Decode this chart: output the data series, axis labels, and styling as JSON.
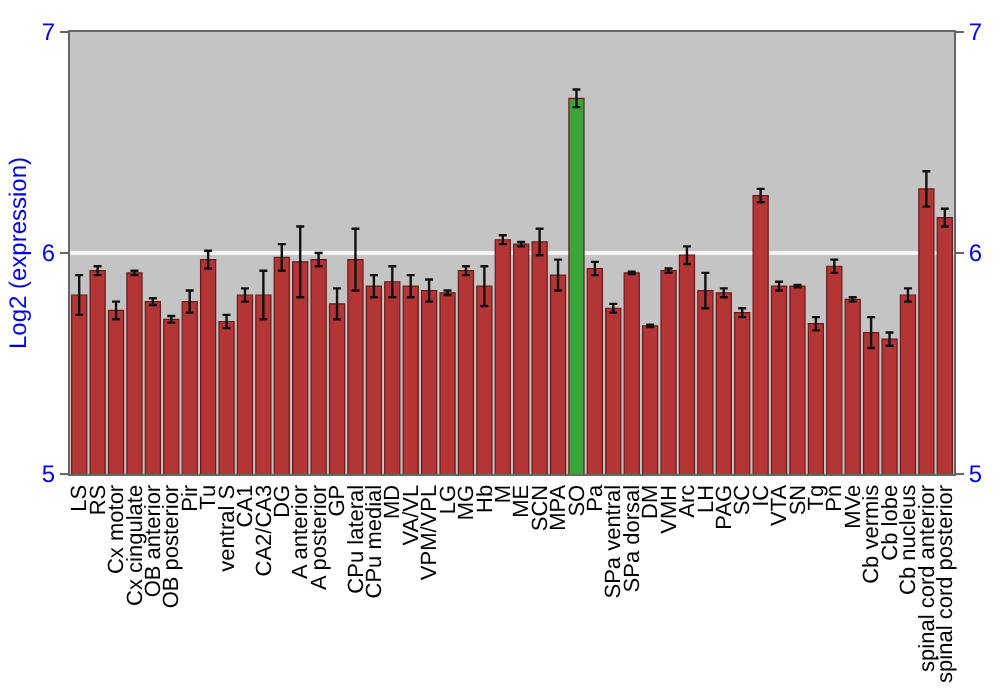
{
  "chart_data": {
    "type": "bar",
    "ylabel": "Log2 (expression)",
    "categories": [
      "LS",
      "RS",
      "Cx motor",
      "Cx cingulate",
      "OB anterior",
      "OB posterior",
      "Pir",
      "Tu",
      "ventral S",
      "CA1",
      "CA2/CA3",
      "DG",
      "A anterior",
      "A posterior",
      "GP",
      "CPu lateral",
      "CPu medial",
      "MD",
      "VA/VL",
      "VPM/VPL",
      "LG",
      "MG",
      "Hb",
      "M",
      "ME",
      "SCN",
      "MPA",
      "SO",
      "Pa",
      "SPa ventral",
      "SPa dorsal",
      "DM",
      "VMH",
      "Arc",
      "LH",
      "PAG",
      "SC",
      "IC",
      "VTA",
      "SN",
      "Tg",
      "Pn",
      "MVe",
      "Cb vermis",
      "Cb lobe",
      "Cb nucleus",
      "spinal cord anterior",
      "spinal cord posterior"
    ],
    "values": [
      5.81,
      5.92,
      5.74,
      5.91,
      5.78,
      5.7,
      5.78,
      5.97,
      5.69,
      5.81,
      5.81,
      5.98,
      5.96,
      5.97,
      5.77,
      5.97,
      5.85,
      5.87,
      5.85,
      5.83,
      5.82,
      5.92,
      5.85,
      6.06,
      6.04,
      6.05,
      5.9,
      6.7,
      5.93,
      5.75,
      5.91,
      5.67,
      5.92,
      5.99,
      5.83,
      5.82,
      5.73,
      6.26,
      5.85,
      5.85,
      5.68,
      5.94,
      5.79,
      5.64,
      5.61,
      5.81,
      6.29,
      6.16
    ],
    "errors": [
      0.09,
      0.02,
      0.04,
      0.01,
      0.015,
      0.015,
      0.05,
      0.04,
      0.03,
      0.03,
      0.11,
      0.06,
      0.16,
      0.03,
      0.07,
      0.14,
      0.05,
      0.07,
      0.05,
      0.05,
      0.01,
      0.02,
      0.09,
      0.02,
      0.01,
      0.06,
      0.07,
      0.04,
      0.03,
      0.02,
      0.005,
      0.005,
      0.01,
      0.04,
      0.08,
      0.02,
      0.02,
      0.03,
      0.02,
      0.005,
      0.03,
      0.03,
      0.01,
      0.07,
      0.03,
      0.03,
      0.08,
      0.04
    ],
    "colors": [
      "#b33535",
      "#b33535",
      "#b33535",
      "#b33535",
      "#b33535",
      "#b33535",
      "#b33535",
      "#b33535",
      "#b33535",
      "#b33535",
      "#b33535",
      "#b33535",
      "#b33535",
      "#b33535",
      "#b33535",
      "#b33535",
      "#b33535",
      "#b33535",
      "#b33535",
      "#b33535",
      "#b33535",
      "#b33535",
      "#b33535",
      "#b33535",
      "#b33535",
      "#b33535",
      "#b33535",
      "#3aa63a",
      "#b33535",
      "#b33535",
      "#b33535",
      "#b33535",
      "#b33535",
      "#b33535",
      "#b33535",
      "#b33535",
      "#b33535",
      "#b33535",
      "#b33535",
      "#b33535",
      "#b33535",
      "#b33535",
      "#b33535",
      "#b33535",
      "#b33535",
      "#b33535",
      "#b33535",
      "#b33535"
    ],
    "ylim": [
      5,
      7
    ],
    "yticks": [
      5,
      6,
      7
    ],
    "y2lim": [
      5,
      7
    ],
    "y2ticks": [
      5,
      6,
      7
    ],
    "grid": "y"
  }
}
